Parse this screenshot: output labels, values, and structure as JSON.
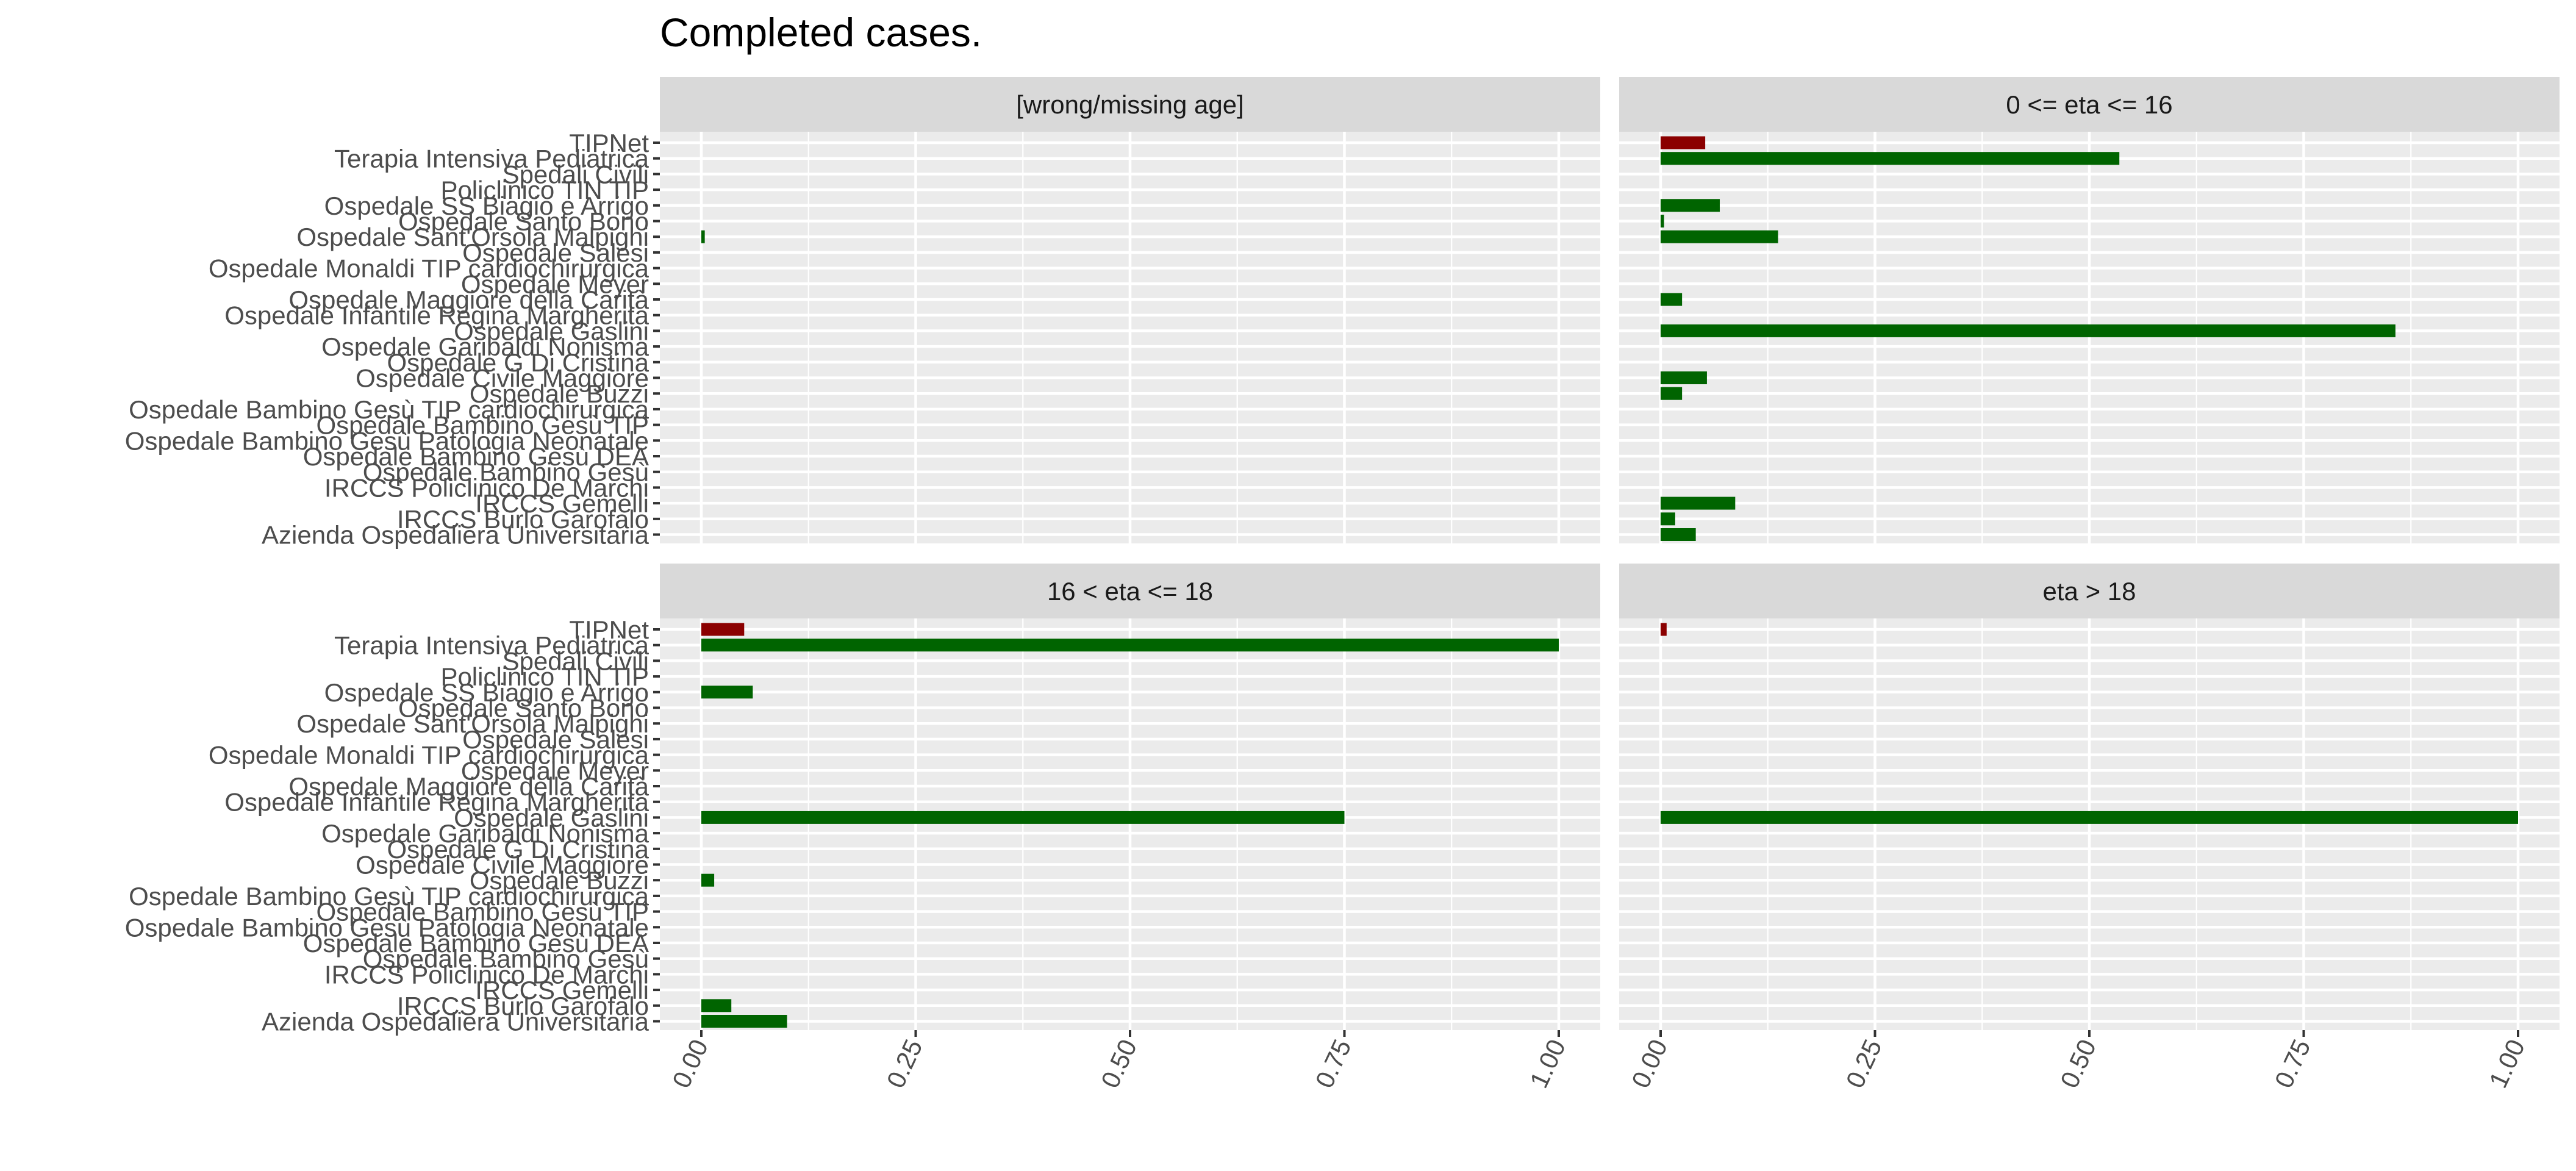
{
  "chart_data": {
    "type": "bar",
    "orientation": "horizontal",
    "title": "Completed cases.",
    "xlabel": "",
    "ylabel": "",
    "xlim": [
      0,
      1
    ],
    "x_ticks": [
      "0.00",
      "0.25",
      "0.50",
      "0.75",
      "1.00"
    ],
    "grid": true,
    "legend": "none",
    "colors": {
      "first_row": "#8b0000",
      "other_rows": "#006400"
    },
    "categories": [
      "TIPNet",
      "Terapia Intensiva Pediatrica",
      "Spedali Civili",
      "Policlinico TIN TIP",
      "Ospedale SS Biagio e Arrigo",
      "Ospedale Santo Bono",
      "Ospedale Sant'Orsola Malpighi",
      "Ospedale Salesi",
      "Ospedale Monaldi TIP cardiochirurgica",
      "Ospedale Meyer",
      "Ospedale Maggiore della Carità",
      "Ospedale Infantile Regina Margherita",
      "Ospedale Gaslini",
      "Ospedale Garibaldi Nonisma",
      "Ospedale G Di Cristina",
      "Ospedale Civile Maggiore",
      "Ospedale Buzzi",
      "Ospedale Bambino Gesù TIP cardiochirurgica",
      "Ospedale Bambino Gesù TIP",
      "Ospedale Bambino Gesù Patologia Neonatale",
      "Ospedale Bambino Gesù DEA",
      "Ospedale Bambino Gesù",
      "IRCCS Policlinico De Marchi",
      "IRCCS Gemelli",
      "IRCCS Burlo Garofalo",
      "Azienda Ospedaliera Universitaria"
    ],
    "panels": [
      {
        "label": "[wrong/missing age]",
        "values": [
          0,
          0,
          0,
          0,
          0,
          0,
          0.004,
          0,
          0,
          0,
          0,
          0,
          0,
          0,
          0,
          0,
          0,
          0,
          0,
          0,
          0,
          0,
          0,
          0,
          0,
          0
        ]
      },
      {
        "label": "0 <= eta <= 16",
        "values": [
          0.052,
          0.535,
          0,
          0,
          0.069,
          0.004,
          0.137,
          0,
          0,
          0,
          0.025,
          0,
          0.857,
          0,
          0,
          0.054,
          0.025,
          0,
          0,
          0,
          0,
          0,
          0,
          0.087,
          0.017,
          0.041
        ]
      },
      {
        "label": "16 < eta <= 18",
        "values": [
          0.05,
          1.0,
          0,
          0,
          0.06,
          0,
          0,
          0,
          0,
          0,
          0,
          0,
          0.75,
          0,
          0,
          0,
          0.015,
          0,
          0,
          0,
          0,
          0,
          0,
          0,
          0.035,
          0.1
        ]
      },
      {
        "label": "eta > 18",
        "values": [
          0.007,
          0,
          0,
          0,
          0,
          0,
          0,
          0,
          0,
          0,
          0,
          0,
          1.0,
          0,
          0,
          0,
          0,
          0,
          0,
          0,
          0,
          0,
          0,
          0,
          0,
          0
        ]
      }
    ]
  }
}
